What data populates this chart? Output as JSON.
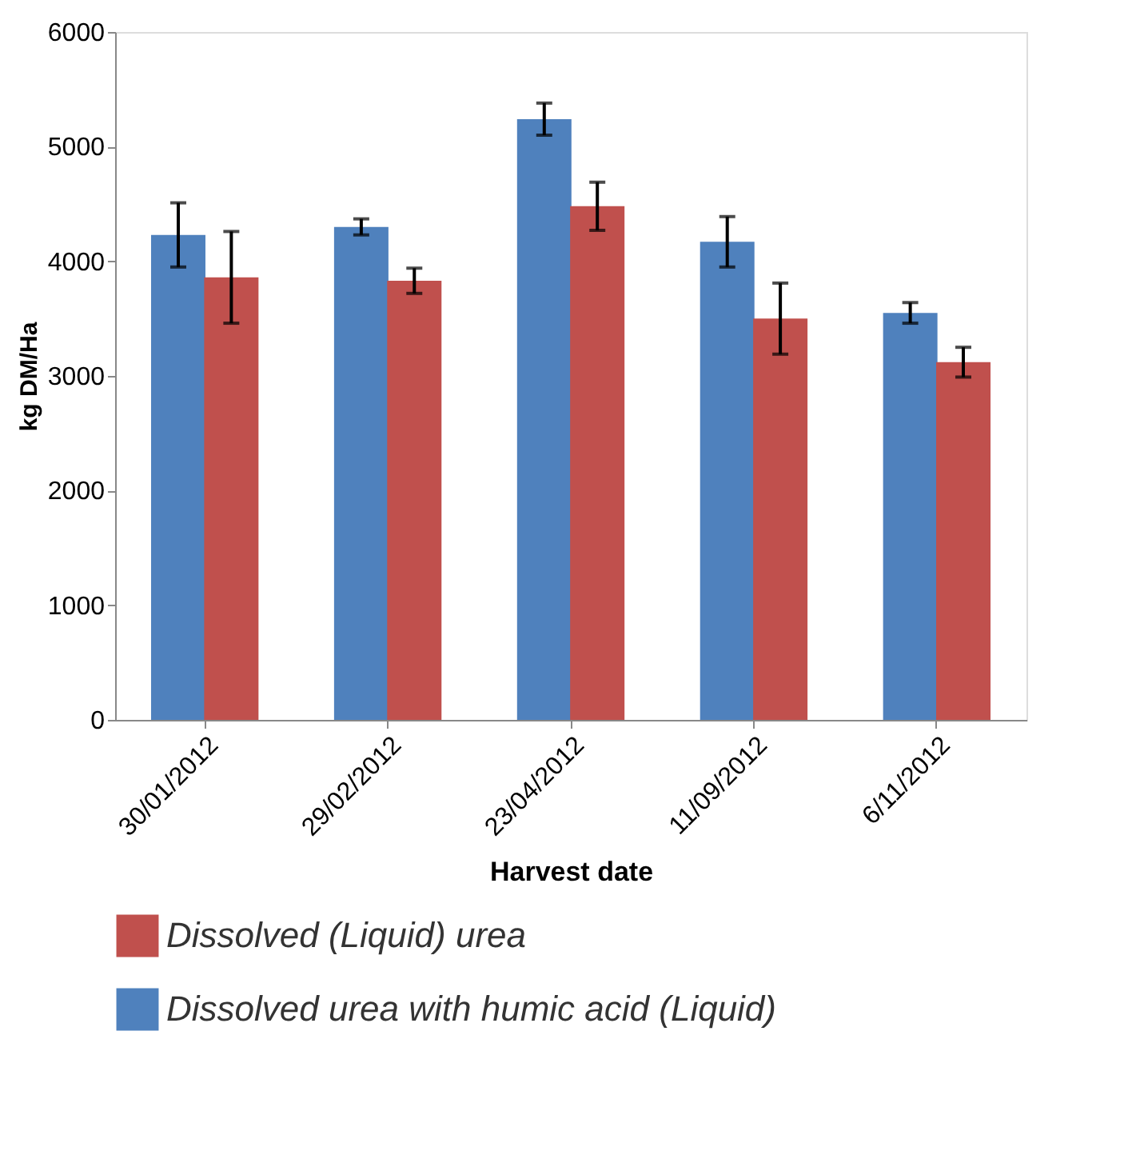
{
  "chart_data": {
    "type": "bar",
    "xlabel": "Harvest date",
    "ylabel": "kg DM/Ha",
    "categories": [
      "30/01/2012",
      "29/02/2012",
      "23/04/2012",
      "11/09/2012",
      "6/11/2012"
    ],
    "series": [
      {
        "name": "Dissolved urea with humic acid (Liquid)",
        "color": "#4f81bd",
        "values": [
          4230,
          4300,
          5240,
          4170,
          3550
        ],
        "errors": [
          280,
          70,
          140,
          220,
          90
        ]
      },
      {
        "name": "Dissolved (Liquid) urea",
        "color": "#c0504d",
        "values": [
          3860,
          3830,
          4480,
          3500,
          3120
        ],
        "errors": [
          400,
          110,
          210,
          310,
          130
        ]
      }
    ],
    "ylim": [
      0,
      6000
    ],
    "yticks": [
      0,
      1000,
      2000,
      3000,
      4000,
      5000,
      6000
    ],
    "grid": false,
    "legend": "bottom"
  }
}
